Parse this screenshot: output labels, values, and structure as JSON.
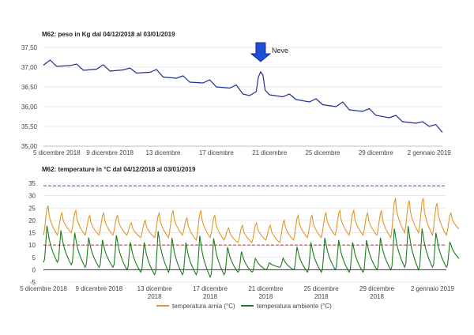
{
  "chart_data": [
    {
      "type": "line",
      "title": "M62: peso in Kg dal 04/12/2018 al 03/01/2019",
      "ylim": [
        35.0,
        37.5
      ],
      "y_ticks": [
        "35,00",
        "35,50",
        "36,00",
        "36,50",
        "37,00",
        "37,50"
      ],
      "x_start": "2018-12-04",
      "x_end": "2019-01-03",
      "x_tick_dates": [
        "2018-12-05",
        "2018-12-09",
        "2018-12-13",
        "2018-12-17",
        "2018-12-21",
        "2018-12-25",
        "2018-12-29",
        "2019-01-02"
      ],
      "x_tick_labels": [
        "5 dicembre 2018",
        "9 dicembre 2018",
        "13 dicembre",
        "17 dicembre",
        "21 dicembre",
        "25 dicembre",
        "29 dicembre",
        "2 gennaio 2019"
      ],
      "grid": "horizontal",
      "annotation": {
        "text": "Neve",
        "date": "2018-12-20"
      },
      "series": [
        {
          "color": "#1f2f8f",
          "points": [
            [
              "2018-12-04",
              37.05
            ],
            [
              "2018-12-04T12:00",
              37.18
            ],
            [
              "2018-12-05",
              37.02
            ],
            [
              "2018-12-06",
              37.04
            ],
            [
              "2018-12-06T12:00",
              37.08
            ],
            [
              "2018-12-07",
              36.92
            ],
            [
              "2018-12-08",
              36.95
            ],
            [
              "2018-12-08T12:00",
              37.06
            ],
            [
              "2018-12-09",
              36.9
            ],
            [
              "2018-12-10",
              36.93
            ],
            [
              "2018-12-10T12:00",
              36.98
            ],
            [
              "2018-12-11",
              36.85
            ],
            [
              "2018-12-12",
              36.87
            ],
            [
              "2018-12-12T12:00",
              36.94
            ],
            [
              "2018-12-13",
              36.75
            ],
            [
              "2018-12-14",
              36.72
            ],
            [
              "2018-12-14T12:00",
              36.78
            ],
            [
              "2018-12-15",
              36.62
            ],
            [
              "2018-12-16",
              36.6
            ],
            [
              "2018-12-16T12:00",
              36.68
            ],
            [
              "2018-12-17",
              36.5
            ],
            [
              "2018-12-18",
              36.47
            ],
            [
              "2018-12-18T12:00",
              36.55
            ],
            [
              "2018-12-19",
              36.32
            ],
            [
              "2018-12-19T12:00",
              36.28
            ],
            [
              "2018-12-20",
              36.38
            ],
            [
              "2018-12-20T04:00",
              36.75
            ],
            [
              "2018-12-20T08:00",
              36.88
            ],
            [
              "2018-12-20T12:00",
              36.8
            ],
            [
              "2018-12-20T16:00",
              36.42
            ],
            [
              "2018-12-21",
              36.3
            ],
            [
              "2018-12-22",
              36.25
            ],
            [
              "2018-12-22T12:00",
              36.32
            ],
            [
              "2018-12-23",
              36.18
            ],
            [
              "2018-12-24",
              36.12
            ],
            [
              "2018-12-24T12:00",
              36.2
            ],
            [
              "2018-12-25",
              36.05
            ],
            [
              "2018-12-26",
              36.0
            ],
            [
              "2018-12-26T12:00",
              36.12
            ],
            [
              "2018-12-27",
              35.92
            ],
            [
              "2018-12-28",
              35.88
            ],
            [
              "2018-12-28T12:00",
              35.95
            ],
            [
              "2018-12-29",
              35.78
            ],
            [
              "2018-12-30",
              35.72
            ],
            [
              "2018-12-30T12:00",
              35.78
            ],
            [
              "2018-12-31",
              35.62
            ],
            [
              "2019-01-01",
              35.58
            ],
            [
              "2019-01-01T12:00",
              35.62
            ],
            [
              "2019-01-02",
              35.5
            ],
            [
              "2019-01-02T12:00",
              35.55
            ],
            [
              "2019-01-03",
              35.35
            ]
          ]
        }
      ]
    },
    {
      "type": "line",
      "title": "M62: temperature in  °C dal 04/12/2018 al 03/01/2019",
      "ylim": [
        -5,
        35
      ],
      "y_ticks": [
        "-5",
        "0",
        "5",
        "10",
        "15",
        "20",
        "25",
        "30",
        "35"
      ],
      "x_start": "2018-12-05",
      "x_end": "2019-01-03",
      "x_tick_dates": [
        "2018-12-05",
        "2018-12-09",
        "2018-12-13",
        "2018-12-17",
        "2018-12-21",
        "2018-12-25",
        "2018-12-29",
        "2019-01-02"
      ],
      "x_tick_labels": [
        "5 dicembre 2018",
        "9 dicembre 2018",
        "13 dicembre 2018",
        "17 dicembre 2018",
        "21 dicembre 2018",
        "25 dicembre 2018",
        "29 dicembre 2018",
        "2 gennaio 2019"
      ],
      "grid": "horizontal",
      "reference_lines": [
        {
          "value": 34,
          "color": "#3b4bb5"
        },
        {
          "value": 10,
          "color": "#b03a3a"
        },
        {
          "value": 0,
          "color": "#5a1f6e"
        }
      ],
      "legend_position": "bottom-center",
      "series": [
        {
          "name": "temperatura arnia (°C)",
          "color": "#e0962a",
          "daily_max": [
            26,
            23,
            24,
            22,
            23,
            22,
            19,
            20,
            23,
            24,
            21,
            24,
            22,
            17,
            18,
            19,
            18,
            20,
            22,
            22,
            23,
            24,
            24,
            23,
            24,
            29,
            28,
            29,
            27,
            23
          ],
          "daily_min": [
            14,
            15,
            14,
            14,
            14,
            14,
            13,
            13,
            13,
            14,
            12,
            13,
            12,
            11,
            11,
            12,
            11,
            12,
            13,
            13,
            14,
            14,
            14,
            14,
            13,
            15,
            15,
            14,
            14,
            16
          ]
        },
        {
          "name": "temperatura ambiente (°C)",
          "color": "#1e7a1e",
          "daily_max": [
            19,
            17,
            16,
            14,
            13,
            15,
            12,
            12,
            17,
            14,
            12,
            15,
            14,
            10,
            8,
            5,
            3,
            5,
            10,
            12,
            14,
            13,
            12,
            13,
            14,
            18,
            19,
            18,
            16,
            12
          ],
          "daily_min": [
            3,
            2,
            1,
            1,
            1,
            0,
            -1,
            -2,
            -1,
            -2,
            -2,
            -3,
            -2,
            -1,
            -1,
            0,
            1,
            0,
            -1,
            -1,
            0,
            -1,
            -1,
            0,
            0,
            1,
            0,
            1,
            1,
            4
          ]
        }
      ]
    }
  ]
}
